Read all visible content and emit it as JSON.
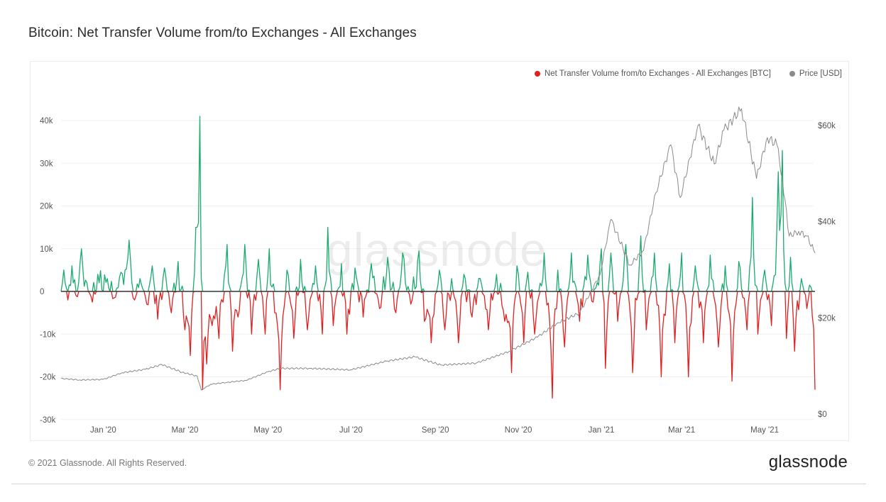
{
  "title": "Bitcoin: Net Transfer Volume from/to Exchanges - All Exchanges",
  "footer": {
    "copyright": "© 2021 Glassnode. All Rights Reserved.",
    "logo": "glassnode"
  },
  "watermark": "glassnode",
  "chart_data": {
    "type": "line",
    "start_date": "2019-12-01",
    "end_date": "2021-06-07",
    "x_tick_labels": [
      "Jan '20",
      "Mar '20",
      "May '20",
      "Jul '20",
      "Sep '20",
      "Nov '20",
      "Jan '21",
      "Mar '21",
      "May '21"
    ],
    "x_tick_dates": [
      "2020-01-01",
      "2020-03-01",
      "2020-05-01",
      "2020-07-01",
      "2020-09-01",
      "2020-11-01",
      "2021-01-01",
      "2021-03-01",
      "2021-05-01"
    ],
    "y_left": {
      "ylim": [
        -30000,
        42000
      ],
      "ticks": [
        -30000,
        -20000,
        -10000,
        0,
        10000,
        20000,
        30000,
        40000
      ],
      "tick_labels": [
        "-30k",
        "-20k",
        "-10k",
        "0",
        "10k",
        "20k",
        "30k",
        "40k"
      ]
    },
    "y_right": {
      "ylim": [
        0,
        64000
      ],
      "ticks": [
        0,
        20000,
        40000,
        60000
      ],
      "tick_labels": [
        "$0",
        "$20k",
        "$40k",
        "$60k"
      ]
    },
    "positive_color": "#1aaa6f",
    "negative_color": "#e02020",
    "price_color": "#8a8a8a",
    "series": [
      {
        "name": "Net Transfer Volume from/to Exchanges - All Exchanges [BTC]",
        "color": "#e02020",
        "axis": "left",
        "anchors": [
          [
            "2019-12-01",
            0
          ],
          [
            "2019-12-03",
            5000
          ],
          [
            "2019-12-06",
            -2000
          ],
          [
            "2019-12-09",
            6000
          ],
          [
            "2019-12-12",
            -1000
          ],
          [
            "2019-12-16",
            10000
          ],
          [
            "2019-12-20",
            2000
          ],
          [
            "2019-12-24",
            -2500
          ],
          [
            "2019-12-28",
            4000
          ],
          [
            "2020-01-04",
            3000
          ],
          [
            "2020-01-09",
            -1500
          ],
          [
            "2020-01-14",
            4500
          ],
          [
            "2020-01-20",
            12000
          ],
          [
            "2020-01-24",
            -2000
          ],
          [
            "2020-01-28",
            3000
          ],
          [
            "2020-02-02",
            -3000
          ],
          [
            "2020-02-06",
            6000
          ],
          [
            "2020-02-10",
            -6500
          ],
          [
            "2020-02-15",
            5500
          ],
          [
            "2020-02-20",
            -5000
          ],
          [
            "2020-02-25",
            7000
          ],
          [
            "2020-03-01",
            -9000
          ],
          [
            "2020-03-05",
            -15000
          ],
          [
            "2020-03-09",
            15000
          ],
          [
            "2020-03-12",
            41000
          ],
          [
            "2020-03-14",
            -23000
          ],
          [
            "2020-03-17",
            -17000
          ],
          [
            "2020-03-21",
            -8000
          ],
          [
            "2020-03-26",
            -11000
          ],
          [
            "2020-04-01",
            11000
          ],
          [
            "2020-04-05",
            -14000
          ],
          [
            "2020-04-09",
            -6000
          ],
          [
            "2020-04-14",
            11000
          ],
          [
            "2020-04-19",
            -10000
          ],
          [
            "2020-04-24",
            7500
          ],
          [
            "2020-04-29",
            -10000
          ],
          [
            "2020-05-02",
            10000
          ],
          [
            "2020-05-06",
            -5000
          ],
          [
            "2020-05-10",
            -23000
          ],
          [
            "2020-05-15",
            5000
          ],
          [
            "2020-05-20",
            -11000
          ],
          [
            "2020-05-25",
            7500
          ],
          [
            "2020-05-30",
            -9000
          ],
          [
            "2020-06-05",
            6000
          ],
          [
            "2020-06-10",
            -10000
          ],
          [
            "2020-06-14",
            15000
          ],
          [
            "2020-06-18",
            -8000
          ],
          [
            "2020-06-24",
            6500
          ],
          [
            "2020-06-28",
            -10000
          ],
          [
            "2020-07-04",
            5500
          ],
          [
            "2020-07-10",
            -6000
          ],
          [
            "2020-07-16",
            6500
          ],
          [
            "2020-07-22",
            -4000
          ],
          [
            "2020-07-28",
            8000
          ],
          [
            "2020-08-03",
            -5000
          ],
          [
            "2020-08-08",
            9000
          ],
          [
            "2020-08-14",
            -3000
          ],
          [
            "2020-08-20",
            9500
          ],
          [
            "2020-08-24",
            -7000
          ],
          [
            "2020-08-29",
            -12000
          ],
          [
            "2020-09-04",
            5000
          ],
          [
            "2020-09-08",
            -9000
          ],
          [
            "2020-09-13",
            3000
          ],
          [
            "2020-09-18",
            -12000
          ],
          [
            "2020-09-22",
            4000
          ],
          [
            "2020-09-28",
            -6000
          ],
          [
            "2020-10-04",
            3000
          ],
          [
            "2020-10-10",
            -9000
          ],
          [
            "2020-10-16",
            4000
          ],
          [
            "2020-10-22",
            -7000
          ],
          [
            "2020-10-27",
            -19000
          ],
          [
            "2020-10-31",
            6000
          ],
          [
            "2020-11-05",
            -12000
          ],
          [
            "2020-11-08",
            4500
          ],
          [
            "2020-11-13",
            -10000
          ],
          [
            "2020-11-20",
            9000
          ],
          [
            "2020-11-26",
            -25000
          ],
          [
            "2020-11-30",
            5000
          ],
          [
            "2020-12-05",
            -13000
          ],
          [
            "2020-12-10",
            9000
          ],
          [
            "2020-12-16",
            -7000
          ],
          [
            "2020-12-22",
            8500
          ],
          [
            "2020-12-26",
            -2500
          ],
          [
            "2021-01-01",
            10000
          ],
          [
            "2021-01-04",
            -18000
          ],
          [
            "2021-01-08",
            9000
          ],
          [
            "2021-01-13",
            -7000
          ],
          [
            "2021-01-19",
            11000
          ],
          [
            "2021-01-24",
            -19000
          ],
          [
            "2021-01-30",
            13000
          ],
          [
            "2021-02-03",
            -9000
          ],
          [
            "2021-02-09",
            9000
          ],
          [
            "2021-02-14",
            -20000
          ],
          [
            "2021-02-20",
            6500
          ],
          [
            "2021-02-24",
            -12000
          ],
          [
            "2021-03-01",
            9000
          ],
          [
            "2021-03-06",
            -20000
          ],
          [
            "2021-03-11",
            6000
          ],
          [
            "2021-03-17",
            -12000
          ],
          [
            "2021-03-22",
            8500
          ],
          [
            "2021-03-28",
            -13000
          ],
          [
            "2021-04-02",
            6000
          ],
          [
            "2021-04-07",
            -21000
          ],
          [
            "2021-04-12",
            7000
          ],
          [
            "2021-04-18",
            -9000
          ],
          [
            "2021-04-22",
            22000
          ],
          [
            "2021-04-26",
            -10000
          ],
          [
            "2021-05-01",
            5000
          ],
          [
            "2021-05-06",
            -8000
          ],
          [
            "2021-05-11",
            28000
          ],
          [
            "2021-05-14",
            33000
          ],
          [
            "2021-05-17",
            -11000
          ],
          [
            "2021-05-20",
            8000
          ],
          [
            "2021-05-23",
            -14000
          ],
          [
            "2021-05-28",
            3000
          ],
          [
            "2021-06-01",
            -4000
          ],
          [
            "2021-06-04",
            1000
          ],
          [
            "2021-06-07",
            -23000
          ]
        ]
      },
      {
        "name": "Price [USD]",
        "color": "#8a8a8a",
        "axis": "right",
        "anchors": [
          [
            "2019-12-01",
            7400
          ],
          [
            "2019-12-15",
            7100
          ],
          [
            "2020-01-01",
            7200
          ],
          [
            "2020-01-15",
            8600
          ],
          [
            "2020-02-01",
            9300
          ],
          [
            "2020-02-13",
            10300
          ],
          [
            "2020-02-28",
            8700
          ],
          [
            "2020-03-10",
            7900
          ],
          [
            "2020-03-13",
            5000
          ],
          [
            "2020-03-20",
            6200
          ],
          [
            "2020-04-01",
            6600
          ],
          [
            "2020-04-15",
            7000
          ],
          [
            "2020-05-01",
            8800
          ],
          [
            "2020-05-10",
            9500
          ],
          [
            "2020-06-01",
            9500
          ],
          [
            "2020-07-01",
            9200
          ],
          [
            "2020-07-27",
            11000
          ],
          [
            "2020-08-17",
            11900
          ],
          [
            "2020-09-05",
            10200
          ],
          [
            "2020-10-01",
            10600
          ],
          [
            "2020-10-25",
            13000
          ],
          [
            "2020-11-15",
            16000
          ],
          [
            "2020-11-30",
            19000
          ],
          [
            "2020-12-16",
            21000
          ],
          [
            "2020-12-31",
            29000
          ],
          [
            "2021-01-08",
            40500
          ],
          [
            "2021-01-22",
            31000
          ],
          [
            "2021-02-01",
            34000
          ],
          [
            "2021-02-10",
            46000
          ],
          [
            "2021-02-21",
            56000
          ],
          [
            "2021-02-28",
            45000
          ],
          [
            "2021-03-13",
            60000
          ],
          [
            "2021-03-25",
            52000
          ],
          [
            "2021-04-01",
            59000
          ],
          [
            "2021-04-14",
            63500
          ],
          [
            "2021-04-25",
            49000
          ],
          [
            "2021-05-03",
            57500
          ],
          [
            "2021-05-10",
            56000
          ],
          [
            "2021-05-14",
            49000
          ],
          [
            "2021-05-19",
            37000
          ],
          [
            "2021-05-26",
            38000
          ],
          [
            "2021-06-01",
            37000
          ],
          [
            "2021-06-07",
            33500
          ]
        ]
      }
    ]
  }
}
